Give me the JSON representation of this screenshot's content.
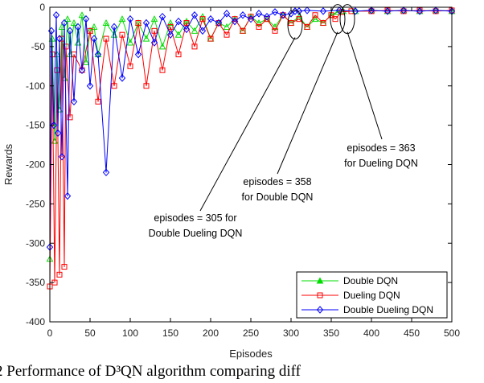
{
  "chart_data": {
    "type": "line",
    "xlabel": "Episodes",
    "ylabel": "Rewards",
    "xlim": [
      0,
      500
    ],
    "ylim": [
      -400,
      0
    ],
    "xticks": [
      0,
      50,
      100,
      150,
      200,
      250,
      300,
      350,
      400,
      450,
      500
    ],
    "yticks": [
      0,
      -50,
      -100,
      -150,
      -200,
      -250,
      -300,
      -350,
      -400
    ],
    "grid": false,
    "legend_position": "bottom-right",
    "series": [
      {
        "name": "Double DQN",
        "color": "#00dd00",
        "marker": "triangle",
        "x": [
          0,
          3,
          6,
          9,
          12,
          15,
          18,
          22,
          25,
          30,
          35,
          40,
          45,
          50,
          55,
          60,
          70,
          80,
          90,
          100,
          110,
          120,
          130,
          140,
          150,
          160,
          170,
          180,
          190,
          200,
          210,
          220,
          230,
          240,
          250,
          260,
          270,
          280,
          290,
          300,
          310,
          320,
          330,
          340,
          350,
          358,
          365,
          380,
          400,
          420,
          440,
          460,
          480,
          500
        ],
        "values": [
          -320,
          -40,
          -170,
          -60,
          -130,
          -25,
          -90,
          -15,
          -60,
          -20,
          -45,
          -10,
          -70,
          -30,
          -25,
          -60,
          -20,
          -35,
          -15,
          -45,
          -20,
          -40,
          -15,
          -50,
          -20,
          -35,
          -18,
          -30,
          -12,
          -40,
          -20,
          -25,
          -15,
          -30,
          -12,
          -20,
          -15,
          -25,
          -10,
          -20,
          -12,
          -25,
          -15,
          -20,
          -10,
          -6,
          -5,
          -5,
          -4,
          -5,
          -4,
          -5,
          -4,
          -5
        ]
      },
      {
        "name": "Dueling DQN",
        "color": "#ff0000",
        "marker": "square",
        "x": [
          0,
          3,
          6,
          9,
          12,
          15,
          18,
          20,
          25,
          30,
          40,
          50,
          60,
          70,
          80,
          90,
          100,
          110,
          120,
          130,
          140,
          150,
          160,
          170,
          180,
          190,
          200,
          210,
          220,
          230,
          240,
          250,
          260,
          270,
          280,
          290,
          300,
          310,
          320,
          330,
          340,
          350,
          355,
          363,
          375,
          400,
          420,
          440,
          460,
          480,
          500
        ],
        "values": [
          -355,
          -60,
          -350,
          -80,
          -340,
          -40,
          -330,
          -50,
          -140,
          -60,
          -80,
          -30,
          -120,
          -40,
          -100,
          -35,
          -75,
          -20,
          -100,
          -30,
          -80,
          -25,
          -60,
          -20,
          -50,
          -15,
          -40,
          -20,
          -35,
          -15,
          -30,
          -12,
          -25,
          -15,
          -30,
          -10,
          -20,
          -15,
          -25,
          -10,
          -20,
          -10,
          -15,
          -6,
          -5,
          -5,
          -4,
          -5,
          -4,
          -5,
          -4
        ]
      },
      {
        "name": "Double Dueling DQN",
        "color": "#0000ff",
        "marker": "diamond",
        "x": [
          0,
          2,
          5,
          8,
          10,
          12,
          15,
          18,
          22,
          25,
          30,
          35,
          40,
          45,
          50,
          55,
          60,
          70,
          80,
          90,
          100,
          110,
          120,
          130,
          140,
          150,
          160,
          170,
          180,
          190,
          200,
          210,
          220,
          230,
          240,
          250,
          260,
          270,
          280,
          290,
          300,
          305,
          310,
          320,
          340,
          360,
          380,
          400,
          420,
          440,
          460,
          480,
          500
        ],
        "values": [
          -305,
          -30,
          -150,
          -10,
          -160,
          -40,
          -190,
          -20,
          -240,
          -30,
          -120,
          -25,
          -80,
          -15,
          -100,
          -40,
          -60,
          -210,
          -25,
          -90,
          -15,
          -60,
          -20,
          -45,
          -12,
          -35,
          -18,
          -28,
          -10,
          -30,
          -15,
          -20,
          -8,
          -18,
          -10,
          -15,
          -8,
          -12,
          -6,
          -10,
          -8,
          -5,
          -5,
          -4,
          -5,
          -4,
          -5,
          -4,
          -5,
          -4,
          -5,
          -4,
          -5
        ]
      }
    ],
    "annotations": [
      {
        "lines": [
          "episodes = 305 for",
          "Double Dueling DQN"
        ],
        "x": 305
      },
      {
        "lines": [
          "episodes = 358",
          "for Double DQN"
        ],
        "x": 358
      },
      {
        "lines": [
          "episodes = 363",
          "for Dueling DQN"
        ],
        "x": 363
      }
    ]
  },
  "caption": "2   Performance of  D³QN algorithm   comparing  diff"
}
